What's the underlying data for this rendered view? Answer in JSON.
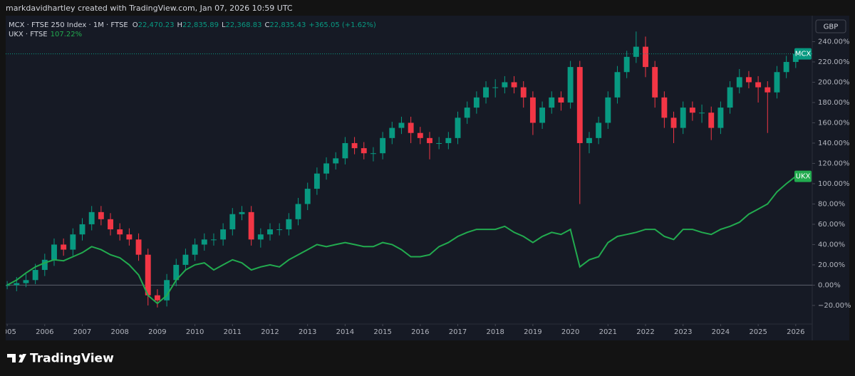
{
  "header": "markdavidhartley created with TradingView.com, Jan 07, 2026 10:59 UTC",
  "legend": {
    "main": "MCX · FTSE 250 Index · 1M · FTSE",
    "ohlc": [
      {
        "label": "O",
        "value": "22,470.23"
      },
      {
        "label": "H",
        "value": "22,835.89"
      },
      {
        "label": "L",
        "value": "22,368.83"
      },
      {
        "label": "C",
        "value": "22,835.43"
      }
    ],
    "change": "+365.05 (+1.62%)",
    "compare": "UKX · FTSE",
    "compare_value": "107.22%"
  },
  "currency_button": "GBP",
  "footer_brand": "TradingView",
  "chart_data": {
    "type": "candlestick",
    "x": [
      2005,
      2005.25,
      2005.5,
      2005.75,
      2006,
      2006.25,
      2006.5,
      2006.75,
      2007,
      2007.25,
      2007.5,
      2007.75,
      2008,
      2008.25,
      2008.5,
      2008.75,
      2009,
      2009.25,
      2009.5,
      2009.75,
      2010,
      2010.25,
      2010.5,
      2010.75,
      2011,
      2011.25,
      2011.5,
      2011.75,
      2012,
      2012.25,
      2012.5,
      2012.75,
      2013,
      2013.25,
      2013.5,
      2013.75,
      2014,
      2014.25,
      2014.5,
      2014.75,
      2015,
      2015.25,
      2015.5,
      2015.75,
      2016,
      2016.25,
      2016.5,
      2016.75,
      2017,
      2017.25,
      2017.5,
      2017.75,
      2018,
      2018.25,
      2018.5,
      2018.75,
      2019,
      2019.25,
      2019.5,
      2019.75,
      2020,
      2020.25,
      2020.5,
      2020.75,
      2021,
      2021.25,
      2021.5,
      2021.75,
      2022,
      2022.25,
      2022.5,
      2022.75,
      2023,
      2023.25,
      2023.5,
      2023.75,
      2024,
      2024.25,
      2024.5,
      2024.75,
      2025,
      2025.25,
      2025.5,
      2025.75,
      2026
    ],
    "series": [
      {
        "name": "MCX",
        "type": "candlestick",
        "up_color": "#089981",
        "down_color": "#f23645",
        "open": [
          0,
          0,
          2,
          5,
          15,
          25,
          40,
          35,
          50,
          60,
          72,
          65,
          55,
          50,
          45,
          30,
          -10,
          -15,
          5,
          20,
          30,
          40,
          45,
          45,
          55,
          70,
          72,
          45,
          50,
          55,
          55,
          65,
          80,
          95,
          110,
          120,
          125,
          140,
          135,
          130,
          130,
          145,
          155,
          160,
          150,
          145,
          140,
          140,
          145,
          165,
          175,
          185,
          195,
          195,
          200,
          195,
          185,
          160,
          175,
          185,
          180,
          215,
          140,
          145,
          160,
          185,
          210,
          225,
          235,
          215,
          185,
          165,
          155,
          175,
          170,
          170,
          155,
          175,
          195,
          205,
          200,
          195,
          190,
          210,
          220
        ],
        "high": [
          4,
          8,
          11,
          21,
          31,
          46,
          46,
          56,
          66,
          78,
          78,
          71,
          61,
          56,
          51,
          36,
          -4,
          11,
          26,
          36,
          46,
          51,
          51,
          61,
          76,
          78,
          78,
          56,
          61,
          61,
          71,
          86,
          101,
          116,
          126,
          131,
          146,
          146,
          141,
          136,
          151,
          161,
          166,
          166,
          156,
          151,
          146,
          151,
          171,
          181,
          191,
          201,
          203,
          206,
          206,
          201,
          191,
          181,
          191,
          191,
          221,
          221,
          151,
          166,
          191,
          216,
          231,
          250,
          245,
          221,
          191,
          171,
          181,
          181,
          178,
          176,
          181,
          201,
          213,
          211,
          206,
          201,
          216,
          226,
          232
        ],
        "low": [
          -4,
          -6,
          -2,
          1,
          9,
          19,
          29,
          29,
          44,
          54,
          59,
          49,
          44,
          39,
          24,
          -20,
          -22,
          -21,
          -1,
          14,
          24,
          34,
          39,
          39,
          49,
          64,
          39,
          37,
          44,
          49,
          49,
          59,
          74,
          89,
          104,
          114,
          119,
          129,
          124,
          122,
          124,
          139,
          149,
          140,
          139,
          124,
          134,
          134,
          139,
          159,
          169,
          179,
          185,
          189,
          189,
          175,
          148,
          154,
          169,
          172,
          174,
          80,
          130,
          139,
          154,
          179,
          204,
          219,
          205,
          175,
          155,
          140,
          149,
          162,
          160,
          143,
          149,
          169,
          189,
          194,
          180,
          150,
          184,
          204,
          214
        ],
        "close": [
          0,
          2,
          5,
          15,
          25,
          40,
          35,
          50,
          60,
          72,
          65,
          55,
          50,
          45,
          30,
          -10,
          -15,
          5,
          20,
          30,
          40,
          45,
          45,
          55,
          70,
          72,
          45,
          50,
          55,
          55,
          65,
          80,
          95,
          110,
          120,
          125,
          140,
          135,
          130,
          130,
          145,
          155,
          160,
          150,
          145,
          140,
          140,
          145,
          165,
          175,
          185,
          195,
          195,
          200,
          195,
          185,
          160,
          175,
          185,
          180,
          215,
          140,
          145,
          160,
          185,
          210,
          225,
          235,
          215,
          185,
          165,
          155,
          175,
          170,
          170,
          155,
          175,
          195,
          205,
          200,
          195,
          190,
          210,
          220,
          228
        ]
      },
      {
        "name": "UKX",
        "type": "line",
        "color": "#22ab4f",
        "values": [
          0,
          5,
          12,
          18,
          22,
          25,
          24,
          28,
          32,
          38,
          35,
          30,
          27,
          20,
          10,
          -10,
          -18,
          -10,
          5,
          15,
          20,
          22,
          15,
          20,
          25,
          22,
          15,
          18,
          20,
          18,
          25,
          30,
          35,
          40,
          38,
          40,
          42,
          40,
          38,
          38,
          42,
          40,
          35,
          28,
          28,
          30,
          38,
          42,
          48,
          52,
          55,
          55,
          55,
          58,
          52,
          48,
          42,
          48,
          52,
          50,
          55,
          18,
          25,
          28,
          42,
          48,
          50,
          52,
          55,
          55,
          48,
          45,
          55,
          55,
          52,
          50,
          55,
          58,
          62,
          70,
          75,
          80,
          92,
          100,
          107.22
        ]
      }
    ],
    "xlim": [
      2004.96,
      2026.44
    ],
    "xticks": [
      2005,
      2006,
      2007,
      2008,
      2009,
      2010,
      2011,
      2012,
      2013,
      2014,
      2015,
      2016,
      2017,
      2018,
      2019,
      2020,
      2021,
      2022,
      2023,
      2024,
      2025,
      2026
    ],
    "ylim": [
      -38.3,
      263.5
    ],
    "yticks": [
      {
        "value": -20,
        "label": "−20.00%"
      },
      {
        "value": 0,
        "label": "0.00%"
      },
      {
        "value": 20,
        "label": "20.00%"
      },
      {
        "value": 40,
        "label": "40.00%"
      },
      {
        "value": 60,
        "label": "60.00%"
      },
      {
        "value": 80,
        "label": "80.00%"
      },
      {
        "value": 100,
        "label": "100.00%"
      },
      {
        "value": 120,
        "label": "120.00%"
      },
      {
        "value": 140,
        "label": "140.00%"
      },
      {
        "value": 160,
        "label": "160.00%"
      },
      {
        "value": 180,
        "label": "180.00%"
      },
      {
        "value": 200,
        "label": "200.00%"
      },
      {
        "value": 220,
        "label": "220.00%"
      },
      {
        "value": 240,
        "label": "240.00%"
      }
    ],
    "baseline_value": 0
  }
}
